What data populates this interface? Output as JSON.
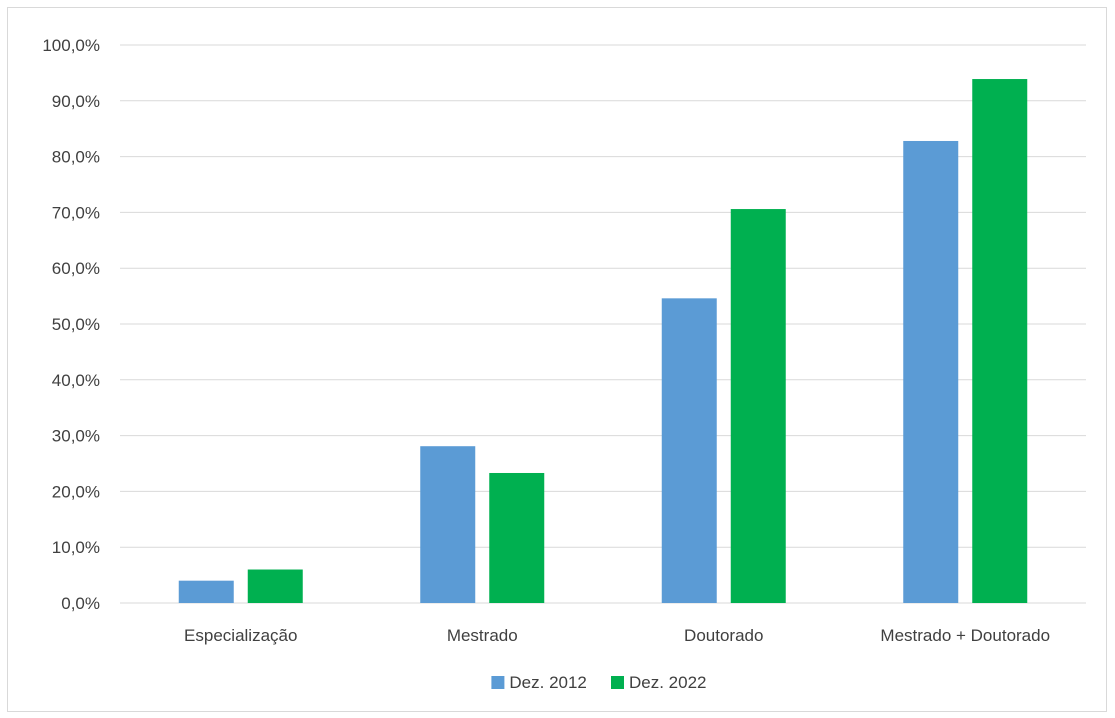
{
  "chart_data": {
    "type": "bar",
    "title": "",
    "xlabel": "",
    "ylabel": "",
    "categories": [
      "Especialização",
      "Mestrado",
      "Doutorado",
      "Mestrado + Doutorado"
    ],
    "series": [
      {
        "name": "Dez. 2012",
        "color": "#5b9bd5",
        "values": [
          4.0,
          28.1,
          54.6,
          82.8
        ]
      },
      {
        "name": "Dez. 2022",
        "color": "#00b050",
        "values": [
          6.0,
          23.3,
          70.6,
          93.9
        ]
      }
    ],
    "ylim": [
      0,
      100
    ],
    "yticks": [
      0,
      10,
      20,
      30,
      40,
      50,
      60,
      70,
      80,
      90,
      100
    ],
    "ytick_labels": [
      "0,0%",
      "10,0%",
      "20,0%",
      "30,0%",
      "40,0%",
      "50,0%",
      "60,0%",
      "70,0%",
      "80,0%",
      "90,0%",
      "100,0%"
    ],
    "grid": true,
    "legend_position": "bottom",
    "gridline_color": "#d9d9d9"
  }
}
